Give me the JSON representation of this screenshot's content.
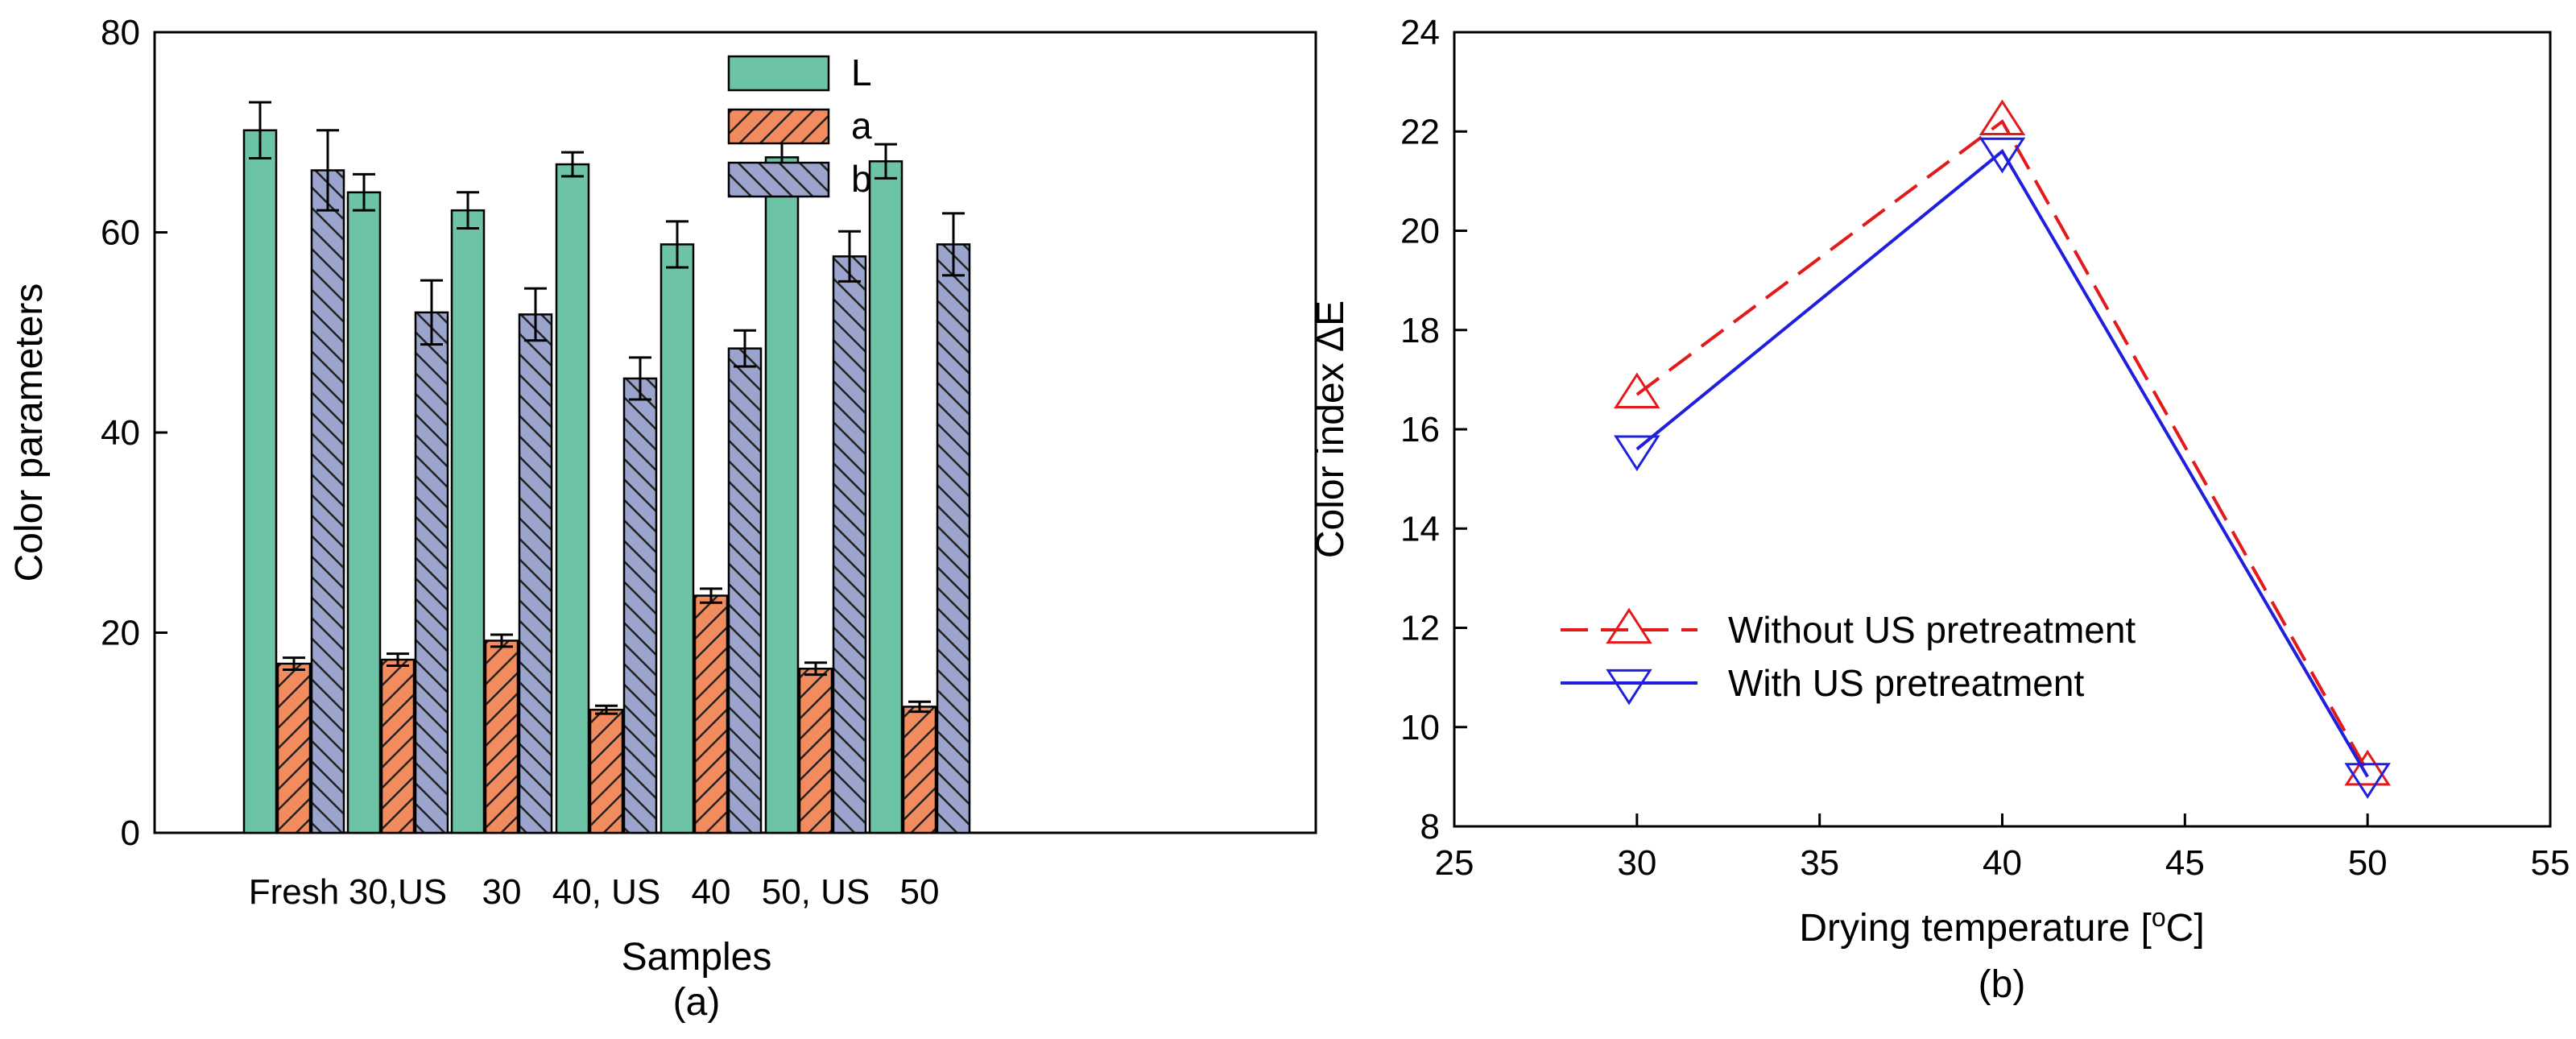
{
  "chart_data": [
    {
      "type": "bar",
      "panel_label": "(a)",
      "xlabel": "Samples",
      "ylabel": "Color parameters",
      "ylim": [
        0,
        80
      ],
      "yticks": [
        0,
        20,
        40,
        60,
        80
      ],
      "categories": [
        "Fresh",
        "30,US",
        "30",
        "40, US",
        "40",
        "50, US",
        "50"
      ],
      "legend_position": "top-center",
      "series": [
        {
          "name": "L",
          "color": "#6cc3a5",
          "hatch": "none",
          "values": [
            70.2,
            64.0,
            62.2,
            66.8,
            58.8,
            67.5,
            67.1
          ],
          "errors": [
            2.8,
            1.8,
            1.8,
            1.2,
            2.3,
            2.0,
            1.7
          ]
        },
        {
          "name": "a",
          "color": "#f28c5f",
          "hatch": "diagonal",
          "values": [
            16.9,
            17.3,
            19.2,
            12.3,
            23.7,
            16.4,
            12.6
          ],
          "errors": [
            0.6,
            0.6,
            0.6,
            0.4,
            0.7,
            0.6,
            0.5
          ]
        },
        {
          "name": "b",
          "color": "#9aa4cc",
          "hatch": "diagonal",
          "values": [
            66.2,
            52.0,
            51.8,
            45.4,
            48.4,
            57.6,
            58.8
          ],
          "errors": [
            4.0,
            3.2,
            2.6,
            2.1,
            1.8,
            2.5,
            3.1
          ]
        }
      ]
    },
    {
      "type": "line",
      "panel_label": "(b)",
      "xlabel": "Drying temperature [",
      "xlabel_sup": "o",
      "xlabel_end": "C]",
      "ylabel": "Color index ΔE",
      "xlim": [
        25,
        55
      ],
      "ylim": [
        8,
        24
      ],
      "xticks": [
        25,
        30,
        35,
        40,
        45,
        50,
        55
      ],
      "yticks": [
        8,
        10,
        12,
        14,
        16,
        18,
        20,
        22,
        24
      ],
      "legend_position": "lower-left",
      "series": [
        {
          "name": "Without US pretreatment",
          "color": "#e31a1c",
          "line": "dashed",
          "marker": "triangle-up",
          "x": [
            30,
            40,
            50
          ],
          "y": [
            16.7,
            22.2,
            9.1
          ]
        },
        {
          "name": "With US pretreatment",
          "color": "#1f1fdc",
          "line": "solid",
          "marker": "triangle-down",
          "x": [
            30,
            40,
            50
          ],
          "y": [
            15.6,
            21.6,
            9.0
          ]
        }
      ]
    }
  ]
}
